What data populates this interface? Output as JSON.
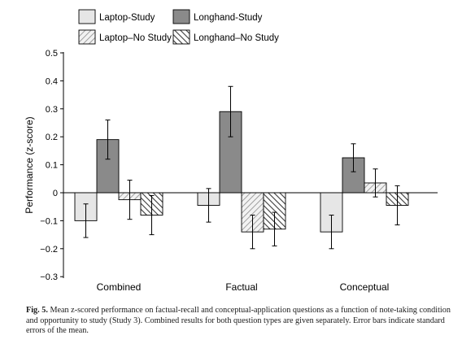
{
  "chart_data": {
    "type": "bar",
    "ylabel": "Performance (z-score)",
    "ylim": [
      -0.3,
      0.5
    ],
    "yticks": [
      -0.3,
      -0.2,
      -0.1,
      0,
      0.1,
      0.2,
      0.3,
      0.4,
      0.5
    ],
    "ytick_labels": [
      "−0.3",
      "−0.2",
      "−0.1",
      "0",
      "0.1",
      "0.2",
      "0.3",
      "0.4",
      "0.5"
    ],
    "categories": [
      "Combined",
      "Factual",
      "Conceptual"
    ],
    "legend_position": "top",
    "series": [
      {
        "name": "Laptop-Study",
        "fill": "solid",
        "color": "#e6e6e6",
        "values": [
          -0.1,
          -0.045,
          -0.14
        ],
        "error": [
          0.06,
          0.06,
          0.06
        ]
      },
      {
        "name": "Longhand-Study",
        "fill": "solid",
        "color": "#8a8a8a",
        "values": [
          0.19,
          0.29,
          0.125
        ],
        "error": [
          0.07,
          0.09,
          0.05
        ]
      },
      {
        "name": "Laptop–No Study",
        "fill": "hatch-light",
        "color": "#e6e6e6",
        "values": [
          -0.025,
          -0.14,
          0.035
        ],
        "error": [
          0.07,
          0.06,
          0.05
        ]
      },
      {
        "name": "Longhand–No Study",
        "fill": "hatch-dark",
        "color": "#8a8a8a",
        "values": [
          -0.08,
          -0.13,
          -0.045
        ],
        "error": [
          0.07,
          0.06,
          0.07
        ]
      }
    ]
  },
  "caption": {
    "label": "Fig. 5.",
    "text": "Mean z-scored performance on factual-recall and conceptual-application questions as a function of note-taking condition and opportunity to study (Study 3). Combined results for both question types are given separately. Error bars indicate standard errors of the mean."
  }
}
